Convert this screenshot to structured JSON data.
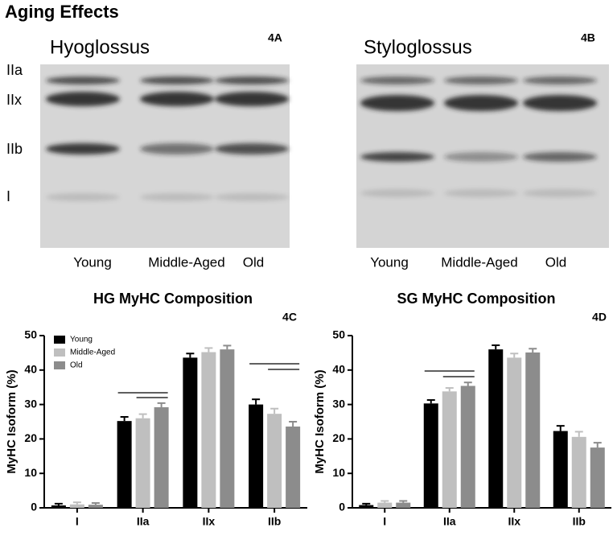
{
  "title": "Aging Effects",
  "gels": [
    {
      "title": "Hyoglossus",
      "panel": "4A",
      "band_labels": [
        "IIa",
        "IIx",
        "IIb",
        "I"
      ],
      "lane_labels": [
        "Young",
        "Middle-Aged",
        "Old"
      ]
    },
    {
      "title": "Styloglossus",
      "panel": "4B",
      "lane_labels": [
        "Young",
        "Middle-Aged",
        "Old"
      ]
    }
  ],
  "chart_data": [
    {
      "type": "bar",
      "title": "HG MyHC Composition",
      "panel": "4C",
      "y_label": "MyHC Isoform (%)",
      "categories": [
        "I",
        "IIa",
        "IIx",
        "IIb"
      ],
      "series": [
        {
          "name": "Young",
          "color": "#000000",
          "values": [
            0.7,
            25.2,
            43.6,
            30.0
          ],
          "errors": [
            0.5,
            1.2,
            1.2,
            1.5
          ]
        },
        {
          "name": "Middle-Aged",
          "color": "#bfbfbf",
          "values": [
            1.0,
            26.0,
            45.2,
            27.3
          ],
          "errors": [
            0.6,
            1.2,
            1.2,
            1.5
          ]
        },
        {
          "name": "Old",
          "color": "#8c8c8c",
          "values": [
            0.9,
            29.2,
            46.0,
            23.6
          ],
          "errors": [
            0.5,
            1.2,
            1.1,
            1.4
          ]
        }
      ],
      "ylim": [
        0,
        50
      ],
      "yticks": [
        0,
        10,
        20,
        30,
        40,
        50
      ],
      "legend": "upper-left"
    },
    {
      "type": "bar",
      "title": "SG MyHC Composition",
      "panel": "4D",
      "y_label": "MyHC Isoform (%)",
      "categories": [
        "I",
        "IIa",
        "IIx",
        "IIb"
      ],
      "series": [
        {
          "name": "Young",
          "color": "#000000",
          "values": [
            0.8,
            30.3,
            46.0,
            22.3
          ],
          "errors": [
            0.4,
            1.0,
            1.2,
            1.5
          ]
        },
        {
          "name": "Middle-Aged",
          "color": "#bfbfbf",
          "values": [
            1.5,
            33.8,
            43.6,
            20.6
          ],
          "errors": [
            0.5,
            1.0,
            1.2,
            1.5
          ]
        },
        {
          "name": "Old",
          "color": "#8c8c8c",
          "values": [
            1.5,
            35.4,
            45.1,
            17.5
          ],
          "errors": [
            0.5,
            1.0,
            1.1,
            1.4
          ]
        }
      ],
      "ylim": [
        0,
        50
      ],
      "yticks": [
        0,
        10,
        20,
        30,
        40,
        50
      ]
    }
  ]
}
